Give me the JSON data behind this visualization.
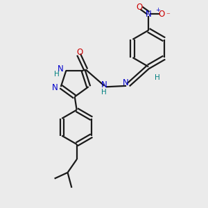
{
  "bg_color": "#ebebeb",
  "bond_color": "#1a1a1a",
  "N_color": "#0000cc",
  "O_color": "#cc0000",
  "H_color": "#008080",
  "lw": 1.6,
  "fig_w": 3.0,
  "fig_h": 3.0,
  "dpi": 100,
  "xlim": [
    0,
    10
  ],
  "ylim": [
    0,
    10
  ]
}
